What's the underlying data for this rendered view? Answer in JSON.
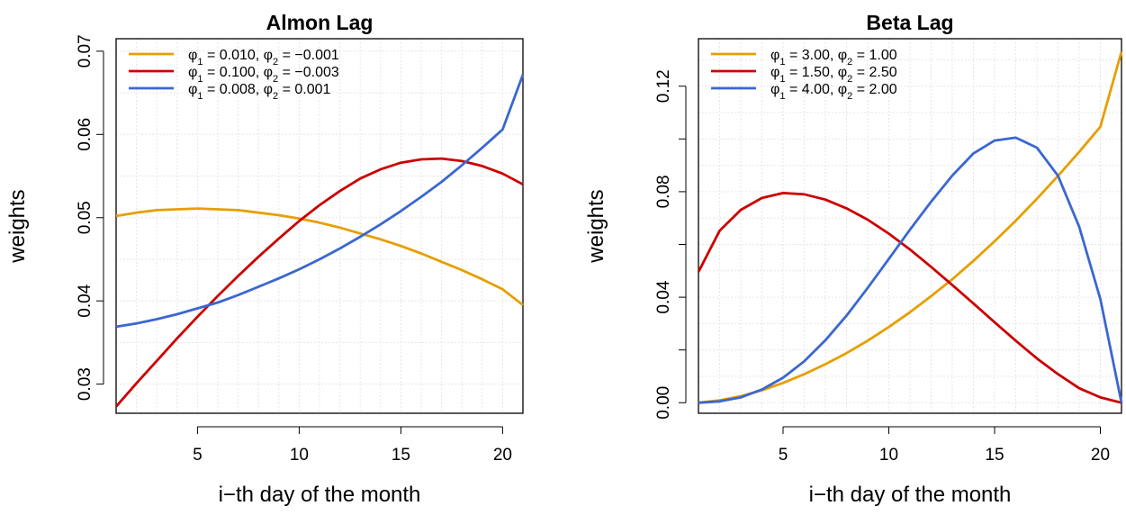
{
  "chart_data": [
    {
      "type": "line",
      "title": "Almon Lag",
      "xlabel": "i−th day of the month",
      "ylabel": "weights",
      "xlim": [
        1,
        21
      ],
      "ylim": [
        0.0265,
        0.0715
      ],
      "x_ticks": [
        5,
        10,
        15,
        20
      ],
      "x_tick_labels": [
        "5",
        "10",
        "15",
        "20"
      ],
      "y_ticks": [
        0.03,
        0.04,
        0.05,
        0.06,
        0.07
      ],
      "y_tick_labels": [
        "0.03",
        "0.04",
        "0.05",
        "0.06",
        "0.07"
      ],
      "grid": true,
      "legend_position": "top-left",
      "marker_points": false,
      "x": [
        1,
        2,
        3,
        4,
        5,
        6,
        7,
        8,
        9,
        10,
        11,
        12,
        13,
        14,
        15,
        16,
        17,
        18,
        19,
        20,
        21
      ],
      "series": [
        {
          "legend": [
            "φ",
            "1",
            " = 0.010, φ",
            "2",
            " = −0.001"
          ],
          "color": "#E69F00",
          "values": [
            0.0502,
            0.0506,
            0.0509,
            0.051,
            0.0511,
            0.051,
            0.0509,
            0.0506,
            0.0503,
            0.0499,
            0.0494,
            0.0488,
            0.0481,
            0.0474,
            0.0466,
            0.0457,
            0.0447,
            0.0437,
            0.0426,
            0.0414,
            0.0395
          ]
        },
        {
          "legend": [
            "φ",
            "1",
            " = 0.100, φ",
            "2",
            " = −0.003"
          ],
          "color": "#CC0000",
          "values": [
            0.0273,
            0.0301,
            0.0328,
            0.0355,
            0.0381,
            0.0406,
            0.043,
            0.0453,
            0.0475,
            0.0496,
            0.0515,
            0.0532,
            0.0547,
            0.0558,
            0.0566,
            0.057,
            0.0571,
            0.0568,
            0.0562,
            0.0553,
            0.054
          ]
        },
        {
          "legend": [
            "φ",
            "1",
            " = 0.008, φ",
            "2",
            " = 0.001"
          ],
          "color": "#3A67D1",
          "values": [
            0.0369,
            0.0373,
            0.0378,
            0.0384,
            0.0391,
            0.0398,
            0.0407,
            0.0417,
            0.0427,
            0.0438,
            0.045,
            0.0463,
            0.0477,
            0.0492,
            0.0508,
            0.0525,
            0.0543,
            0.0563,
            0.0584,
            0.0606,
            0.0672
          ]
        }
      ]
    },
    {
      "type": "line",
      "title": "Beta Lag",
      "xlabel": "i−th day of the month",
      "ylabel": "weights",
      "xlim": [
        1,
        21
      ],
      "ylim": [
        -0.004,
        0.138
      ],
      "x_ticks": [
        5,
        10,
        15,
        20
      ],
      "x_tick_labels": [
        "5",
        "10",
        "15",
        "20"
      ],
      "y_ticks": [
        0.0,
        0.02,
        0.04,
        0.06,
        0.08,
        0.1,
        0.12
      ],
      "y_tick_labels": [
        "0.00",
        "",
        "0.04",
        "",
        "0.08",
        "",
        "0.12"
      ],
      "grid": true,
      "legend_position": "top-left",
      "marker_points": false,
      "x": [
        1,
        2,
        3,
        4,
        5,
        6,
        7,
        8,
        9,
        10,
        11,
        12,
        13,
        14,
        15,
        16,
        17,
        18,
        19,
        20,
        21
      ],
      "series": [
        {
          "legend": [
            "φ",
            "1",
            " = 3.00, φ",
            "2",
            " = 1.00"
          ],
          "color": "#E69F00",
          "values": [
            0.0,
            0.0009,
            0.0025,
            0.0047,
            0.0075,
            0.0108,
            0.0146,
            0.0188,
            0.0235,
            0.0287,
            0.0343,
            0.0404,
            0.0468,
            0.0538,
            0.0612,
            0.069,
            0.0773,
            0.086,
            0.0951,
            0.1046,
            0.1331
          ]
        },
        {
          "legend": [
            "φ",
            "1",
            " = 1.50, φ",
            "2",
            " = 2.50"
          ],
          "color": "#CC0000",
          "values": [
            0.0496,
            0.0652,
            0.0731,
            0.0776,
            0.0795,
            0.079,
            0.077,
            0.0737,
            0.0694,
            0.0641,
            0.0581,
            0.0515,
            0.0446,
            0.0376,
            0.0305,
            0.0235,
            0.0168,
            0.0108,
            0.0055,
            0.002,
            0.0
          ]
        },
        {
          "legend": [
            "φ",
            "1",
            " = 4.00, φ",
            "2",
            " = 2.00"
          ],
          "color": "#3A67D1",
          "values": [
            0.0,
            0.0005,
            0.002,
            0.005,
            0.0095,
            0.0157,
            0.0237,
            0.033,
            0.0435,
            0.0545,
            0.0656,
            0.0762,
            0.0861,
            0.0945,
            0.0994,
            0.1005,
            0.0967,
            0.086,
            0.0667,
            0.0393,
            0.0
          ]
        }
      ]
    }
  ]
}
